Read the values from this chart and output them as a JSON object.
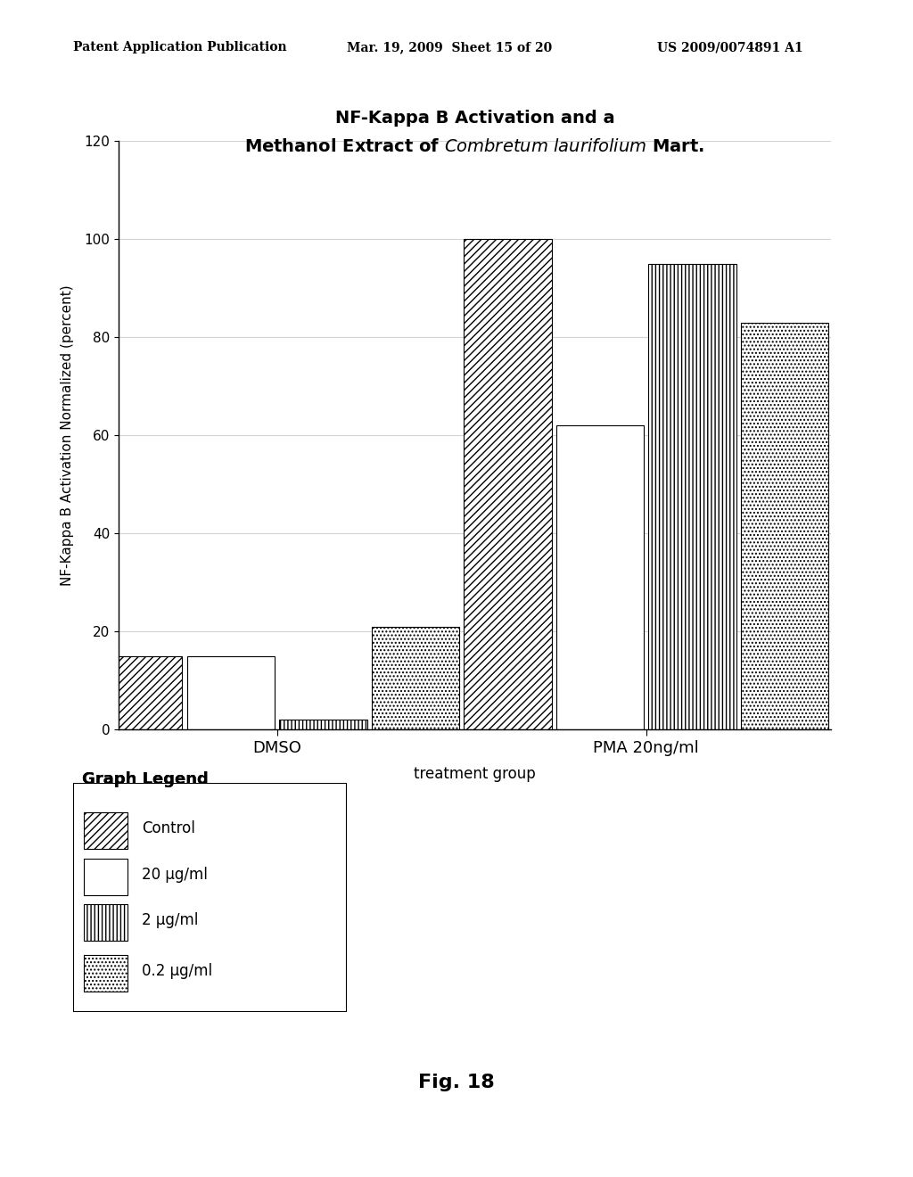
{
  "title_line1": "NF-Kappa B Activation and a",
  "title_line2_normal": "Methanol Extract of ",
  "title_line2_italic": "Combretum laurifolium",
  "title_line2_end": " Mart.",
  "ylabel": "NF-Kappa B Activation Normalized (percent)",
  "xlabel": "treatment group",
  "groups": [
    "DMSO",
    "PMA 20ng/ml"
  ],
  "series_labels": [
    "Control",
    "20 µg/ml",
    "2 µg/ml",
    "0.2 µg/ml"
  ],
  "values": {
    "DMSO": [
      15,
      15,
      2,
      21
    ],
    "PMA 20ng/ml": [
      100,
      62,
      95,
      83
    ]
  },
  "hatches": [
    "////",
    "====",
    "||||",
    "...."
  ],
  "ylim": [
    0,
    120
  ],
  "yticks": [
    0,
    20,
    40,
    60,
    80,
    100,
    120
  ],
  "bar_color": "white",
  "bar_edgecolor": "black",
  "header_left": "Patent Application Publication",
  "header_center": "Mar. 19, 2009  Sheet 15 of 20",
  "header_right": "US 2009/0074891 A1",
  "fig_label": "Fig. 18",
  "legend_title": "Graph Legend",
  "background_color": "white"
}
